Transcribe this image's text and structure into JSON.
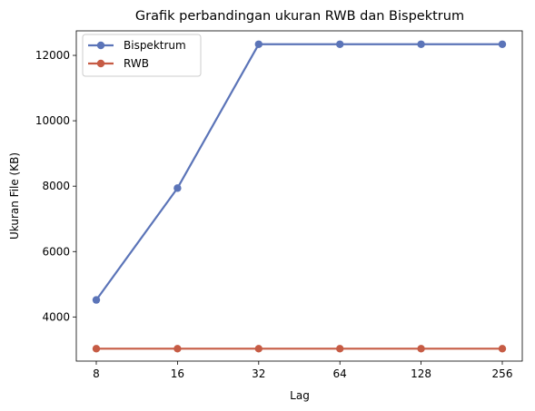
{
  "chart_data": {
    "type": "line",
    "title": "Grafik perbandingan ukuran RWB dan Bispektrum",
    "xlabel": "Lag",
    "ylabel": "Ukuran File (KB)",
    "categories": [
      "8",
      "16",
      "32",
      "64",
      "128",
      "256"
    ],
    "y_ticks": [
      "4000",
      "6000",
      "8000",
      "10000",
      "12000"
    ],
    "ylim": [
      2650,
      12750
    ],
    "grid": false,
    "legend_position": "top-left",
    "series": [
      {
        "name": "Bispektrum",
        "color": "#5b74b8",
        "values": [
          4520,
          7940,
          12340,
          12340,
          12340,
          12340
        ]
      },
      {
        "name": "RWB",
        "color": "#c65b44",
        "values": [
          3030,
          3030,
          3030,
          3030,
          3030,
          3030
        ]
      }
    ]
  }
}
